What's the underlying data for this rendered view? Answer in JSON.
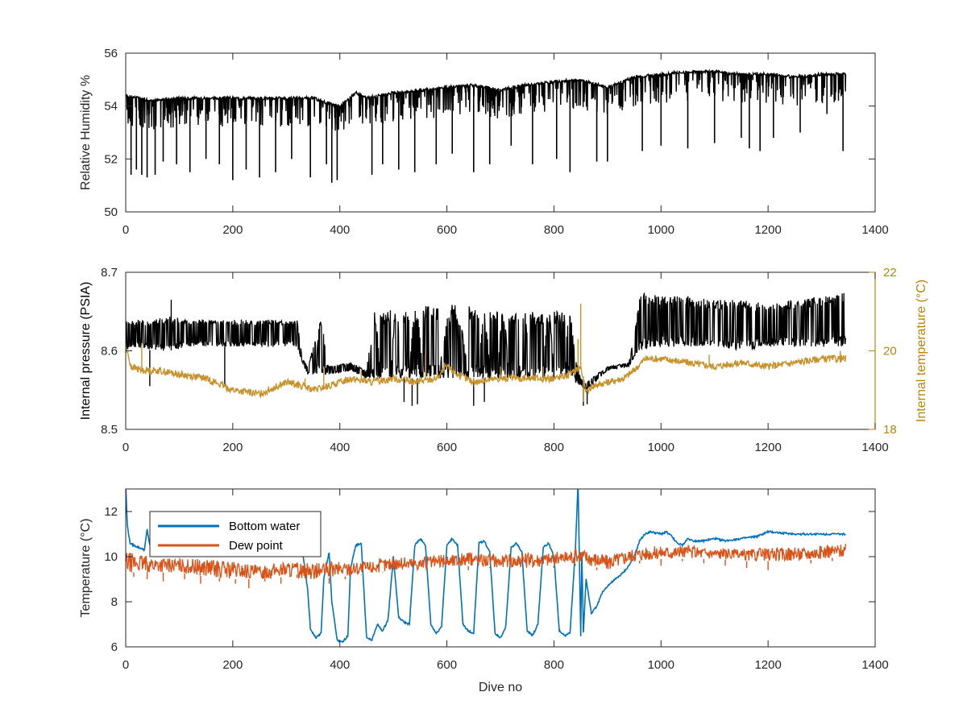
{
  "chart_data": [
    {
      "type": "line",
      "title": "",
      "xlabel": "",
      "ylabel": "Relative Humidity %",
      "xlim": [
        0,
        1400
      ],
      "ylim": [
        50,
        56
      ],
      "xticks": [
        0,
        200,
        400,
        600,
        800,
        1000,
        1200,
        1400
      ],
      "yticks": [
        50,
        52,
        54,
        56
      ],
      "xtick_labels": [
        "0",
        "200",
        "400",
        "600",
        "800",
        "1000",
        "1200",
        "1400"
      ],
      "ytick_labels": [
        "50",
        "52",
        "54",
        "56"
      ],
      "grid": false,
      "series": [
        {
          "color": "#000000",
          "baseline": {
            "x": [
              0,
              50,
              100,
              150,
              200,
              250,
              300,
              350,
              380,
              400,
              430,
              450,
              500,
              550,
              600,
              650,
              700,
              750,
              800,
              850,
              900,
              950,
              1000,
              1050,
              1100,
              1150,
              1200,
              1250,
              1300,
              1345
            ],
            "y": [
              54.4,
              54.2,
              54.3,
              54.3,
              54.3,
              54.3,
              54.3,
              54.3,
              54.1,
              54.0,
              54.5,
              54.3,
              54.5,
              54.6,
              54.7,
              54.8,
              54.6,
              54.8,
              54.9,
              55.0,
              54.7,
              55.1,
              55.2,
              55.3,
              55.3,
              55.2,
              55.2,
              55.1,
              55.2,
              55.2
            ]
          },
          "dips": {
            "x": [
              10,
              20,
              30,
              40,
              55,
              70,
              95,
              120,
              150,
              175,
              200,
              225,
              250,
              280,
              310,
              345,
              375,
              385,
              395,
              460,
              480,
              510,
              540,
              580,
              610,
              650,
              680,
              720,
              760,
              805,
              830,
              880,
              900,
              965,
              1000,
              1050,
              1100,
              1150,
              1165,
              1185,
              1210,
              1260,
              1310,
              1340
            ],
            "y": [
              51.4,
              51.6,
              51.4,
              51.3,
              51.4,
              51.9,
              51.8,
              51.5,
              52.0,
              51.8,
              51.2,
              51.6,
              51.3,
              51.5,
              52.0,
              51.3,
              51.8,
              51.1,
              51.2,
              51.4,
              51.8,
              51.6,
              51.5,
              51.8,
              52.2,
              51.5,
              51.8,
              52.5,
              51.8,
              52.0,
              51.5,
              51.9,
              51.9,
              52.3,
              52.5,
              52.4,
              52.6,
              52.8,
              52.4,
              52.3,
              52.8,
              53.0,
              53.7,
              52.3
            ]
          }
        }
      ]
    },
    {
      "type": "line",
      "title": "",
      "xlabel": "",
      "ylabel": "Internal pressure (PSIA)",
      "ylabel_right": "Internal temperature (°C)",
      "xlim": [
        0,
        1400
      ],
      "ylim": [
        8.5,
        8.7
      ],
      "ylim_right": [
        18,
        22
      ],
      "xticks": [
        0,
        200,
        400,
        600,
        800,
        1000,
        1200,
        1400
      ],
      "yticks": [
        8.5,
        8.6,
        8.7
      ],
      "yticks_right": [
        18,
        20,
        22
      ],
      "xtick_labels": [
        "0",
        "200",
        "400",
        "600",
        "800",
        "1000",
        "1200",
        "1400"
      ],
      "ytick_labels": [
        "8.5",
        "8.6",
        "8.7"
      ],
      "ytick_labels_right": [
        "18",
        "20",
        "22"
      ],
      "grid": false,
      "colors": {
        "left_axis": "#262626",
        "right_axis": "#b8860b"
      },
      "series": [
        {
          "axis": "left",
          "color": "#000000",
          "envelope": {
            "x": [
              0,
              20,
              50,
              80,
              120,
              160,
              200,
              240,
              280,
              320,
              330,
              340,
              360,
              370,
              380,
              420,
              450,
              460,
              480,
              500,
              520,
              540,
              560,
              600,
              630,
              660,
              700,
              740,
              780,
              820,
              850,
              860,
              900,
              940,
              950,
              960,
              1000,
              1050,
              1100,
              1150,
              1200,
              1250,
              1300,
              1345
            ],
            "low": [
              8.6,
              8.605,
              8.6,
              8.6,
              8.605,
              8.605,
              8.605,
              8.605,
              8.605,
              8.605,
              8.585,
              8.57,
              8.57,
              8.57,
              8.57,
              8.575,
              8.565,
              8.565,
              8.565,
              8.565,
              8.565,
              8.565,
              8.565,
              8.565,
              8.565,
              8.565,
              8.565,
              8.565,
              8.565,
              8.565,
              8.555,
              8.55,
              8.575,
              8.58,
              8.59,
              8.6,
              8.605,
              8.605,
              8.605,
              8.6,
              8.605,
              8.605,
              8.605,
              8.605
            ],
            "high": [
              8.64,
              8.64,
              8.64,
              8.645,
              8.64,
              8.64,
              8.64,
              8.64,
              8.64,
              8.64,
              8.59,
              8.58,
              8.63,
              8.59,
              8.58,
              8.585,
              8.575,
              8.645,
              8.65,
              8.655,
              8.65,
              8.655,
              8.66,
              8.65,
              8.66,
              8.655,
              8.65,
              8.65,
              8.65,
              8.65,
              8.565,
              8.56,
              8.58,
              8.585,
              8.62,
              8.675,
              8.67,
              8.67,
              8.665,
              8.665,
              8.66,
              8.665,
              8.67,
              8.675
            ]
          },
          "bursts": [
            {
              "x_start": 355,
              "x_end": 375,
              "low": 8.57,
              "high": 8.64
            },
            {
              "x_start": 455,
              "x_end": 475,
              "low": 8.565,
              "high": 8.65
            },
            {
              "x_start": 495,
              "x_end": 515,
              "low": 8.565,
              "high": 8.65
            },
            {
              "x_start": 530,
              "x_end": 555,
              "low": 8.565,
              "high": 8.655
            },
            {
              "x_start": 585,
              "x_end": 640,
              "low": 8.565,
              "high": 8.66
            },
            {
              "x_start": 660,
              "x_end": 680,
              "low": 8.565,
              "high": 8.65
            },
            {
              "x_start": 695,
              "x_end": 715,
              "low": 8.565,
              "high": 8.65
            },
            {
              "x_start": 735,
              "x_end": 755,
              "low": 8.565,
              "high": 8.65
            },
            {
              "x_start": 780,
              "x_end": 800,
              "low": 8.565,
              "high": 8.65
            },
            {
              "x_start": 820,
              "x_end": 840,
              "low": 8.565,
              "high": 8.65
            }
          ],
          "spikes": {
            "x": [
              45,
              85,
              185,
              335,
              520,
              535,
              545,
              650,
              670,
              855,
              862
            ],
            "y": [
              8.555,
              8.665,
              8.555,
              8.585,
              8.535,
              8.53,
              8.532,
              8.53,
              8.535,
              8.53,
              8.532
            ]
          }
        },
        {
          "axis": "right",
          "color": "#c8922a",
          "x": [
            0,
            10,
            30,
            60,
            100,
            150,
            200,
            250,
            300,
            330,
            350,
            380,
            420,
            460,
            500,
            540,
            580,
            600,
            620,
            650,
            700,
            750,
            800,
            830,
            850,
            860,
            870,
            900,
            930,
            950,
            970,
            1000,
            1050,
            1100,
            1150,
            1200,
            1250,
            1300,
            1345
          ],
          "y": [
            20.1,
            19.6,
            19.5,
            19.5,
            19.4,
            19.3,
            19.0,
            18.9,
            19.2,
            19.1,
            19.0,
            19.1,
            19.3,
            19.2,
            19.3,
            19.2,
            19.3,
            19.6,
            19.4,
            19.2,
            19.3,
            19.3,
            19.3,
            19.4,
            19.6,
            18.9,
            19.1,
            19.2,
            19.3,
            19.5,
            19.8,
            19.8,
            19.7,
            19.6,
            19.7,
            19.6,
            19.7,
            19.8,
            19.8
          ],
          "spikes": {
            "x": [
              30,
              335,
              370,
              440,
              560,
              595,
              700,
              780,
              845,
              850,
              855,
              1090,
              1335
            ],
            "y": [
              20.2,
              19.3,
              19.6,
              19.5,
              19.9,
              19.7,
              19.6,
              19.6,
              20.3,
              21.2,
              18.7,
              19.9,
              20.0
            ]
          }
        }
      ]
    },
    {
      "type": "line",
      "title": "",
      "xlabel": "Dive no",
      "ylabel": "Temperature (°C)",
      "xlim": [
        0,
        1400
      ],
      "ylim": [
        6,
        13
      ],
      "xticks": [
        0,
        200,
        400,
        600,
        800,
        1000,
        1200,
        1400
      ],
      "yticks": [
        6,
        8,
        10,
        12
      ],
      "xtick_labels": [
        "0",
        "200",
        "400",
        "600",
        "800",
        "1000",
        "1200",
        "1400"
      ],
      "ytick_labels": [
        "6",
        "8",
        "10",
        "12"
      ],
      "grid": false,
      "legend": "top-left",
      "series": [
        {
          "name": "Bottom water",
          "color": "#0072bd",
          "x": [
            0,
            3,
            8,
            15,
            25,
            35,
            40,
            45,
            60,
            100,
            150,
            200,
            250,
            300,
            330,
            340,
            345,
            355,
            365,
            370,
            380,
            385,
            395,
            405,
            415,
            420,
            430,
            440,
            450,
            460,
            470,
            480,
            490,
            500,
            510,
            520,
            530,
            540,
            550,
            560,
            570,
            580,
            590,
            600,
            610,
            620,
            630,
            640,
            650,
            660,
            670,
            680,
            690,
            700,
            710,
            720,
            730,
            740,
            750,
            760,
            770,
            780,
            790,
            800,
            810,
            820,
            830,
            840,
            845,
            850,
            852,
            855,
            860,
            870,
            880,
            890,
            900,
            910,
            920,
            930,
            940,
            950,
            960,
            970,
            980,
            1000,
            1010,
            1020,
            1030,
            1040,
            1050,
            1060,
            1080,
            1100,
            1120,
            1150,
            1180,
            1200,
            1250,
            1300,
            1345
          ],
          "y": [
            13.2,
            11.4,
            10.6,
            10.5,
            10.4,
            10.3,
            11.2,
            10.5,
            10.4,
            10.5,
            10.5,
            10.5,
            10.5,
            10.4,
            10.3,
            8.5,
            6.8,
            6.4,
            6.6,
            9.0,
            10.2,
            8.0,
            6.3,
            6.2,
            6.5,
            9.5,
            10.5,
            10.6,
            6.4,
            6.3,
            7.0,
            6.7,
            7.2,
            10.0,
            7.3,
            7.1,
            7.0,
            10.5,
            10.8,
            10.5,
            7.0,
            6.6,
            6.9,
            10.5,
            10.8,
            10.5,
            7.0,
            6.7,
            6.6,
            10.6,
            10.7,
            10.2,
            6.6,
            6.4,
            6.9,
            10.4,
            10.6,
            10.2,
            6.7,
            6.5,
            7.0,
            10.4,
            10.6,
            10.0,
            6.7,
            6.5,
            6.6,
            10.3,
            13.3,
            6.5,
            10.2,
            6.6,
            9.0,
            7.5,
            7.8,
            8.4,
            8.7,
            8.9,
            9.1,
            9.3,
            9.6,
            10.0,
            10.7,
            11.0,
            11.1,
            11.0,
            11.1,
            10.9,
            10.6,
            10.5,
            10.8,
            10.7,
            10.7,
            10.8,
            10.7,
            10.8,
            10.9,
            11.1,
            11.0,
            11.0,
            11.0
          ]
        },
        {
          "name": "Dew point",
          "color": "#d95319",
          "baseline": {
            "x": [
              0,
              50,
              100,
              150,
              200,
              250,
              300,
              350,
              400,
              450,
              500,
              550,
              600,
              650,
              700,
              750,
              800,
              850,
              900,
              950,
              1000,
              1050,
              1100,
              1150,
              1200,
              1250,
              1300,
              1345
            ],
            "low": [
              9.3,
              9.3,
              9.3,
              9.1,
              9.0,
              9.0,
              9.1,
              9.0,
              9.1,
              9.2,
              9.4,
              9.4,
              9.5,
              9.6,
              9.5,
              9.5,
              9.6,
              9.7,
              9.4,
              9.8,
              9.9,
              9.9,
              9.9,
              9.8,
              9.8,
              9.8,
              9.9,
              10.0
            ],
            "high": [
              10.2,
              10.0,
              9.9,
              9.9,
              9.8,
              9.6,
              9.8,
              9.7,
              9.8,
              9.8,
              10.0,
              10.0,
              10.1,
              10.2,
              10.1,
              10.2,
              10.2,
              10.4,
              10.1,
              10.4,
              10.5,
              10.5,
              10.4,
              10.3,
              10.4,
              10.4,
              10.5,
              10.6
            ]
          },
          "dips": {
            "x": [
              15,
              40,
              70,
              110,
              140,
              175,
              205,
              230,
              260,
              290,
              320,
              350,
              380,
              410,
              440,
              480,
              520,
              560,
              600,
              640,
              680,
              720,
              760,
              800,
              840,
              880,
              960,
              1000,
              1040,
              1080,
              1120,
              1160,
              1200,
              1240,
              1280,
              1320
            ],
            "y": [
              9.1,
              9.0,
              8.9,
              9.0,
              8.8,
              8.9,
              8.8,
              8.6,
              8.9,
              8.8,
              9.2,
              9.0,
              8.8,
              9.0,
              9.2,
              9.3,
              9.4,
              9.4,
              9.5,
              9.4,
              9.5,
              9.5,
              9.6,
              9.5,
              9.6,
              9.4,
              9.7,
              9.6,
              9.8,
              9.7,
              9.6,
              9.5,
              9.4,
              9.8,
              9.7,
              9.8
            ]
          }
        }
      ]
    }
  ]
}
